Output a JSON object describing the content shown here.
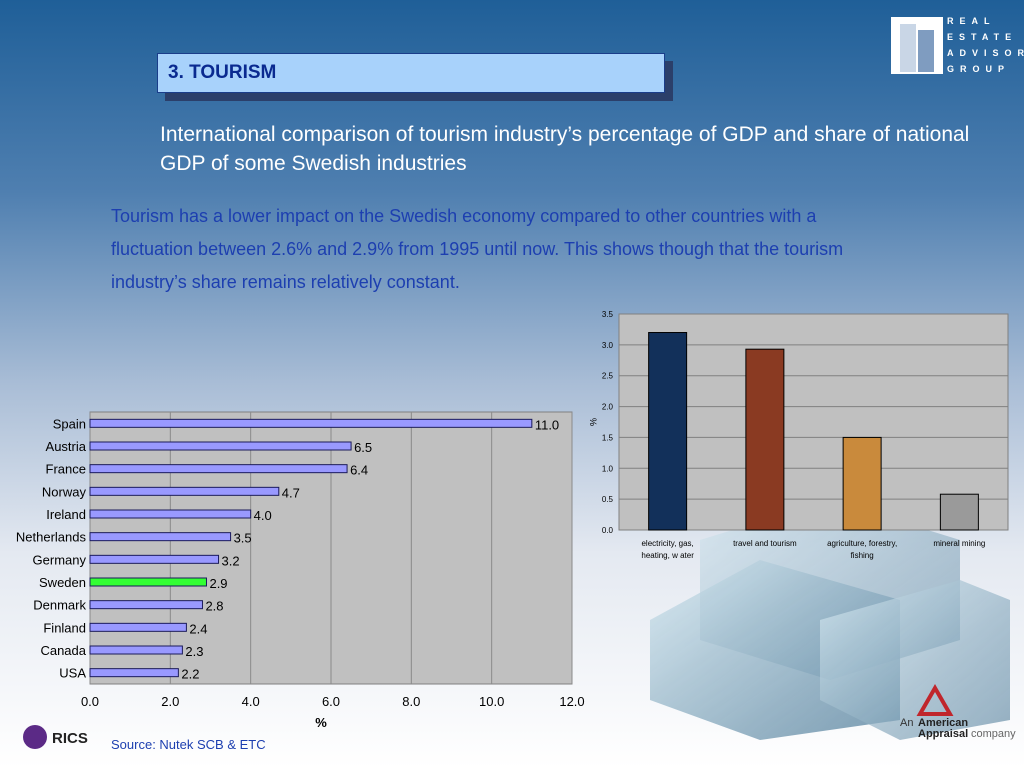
{
  "slide": {
    "heading": "3. TOURISM",
    "subtitle": "International comparison of tourism industry’s percentage of GDP and share of national GDP of some Swedish industries",
    "body": "Tourism has a lower impact on the Swedish economy compared to other countries with a fluctuation between 2.6% and 2.9% from 1995 until now. This shows though that the tourism industry’s share remains relatively constant.",
    "source": "Source: Nutek SCB & ETC",
    "logo_left": "RICS",
    "logo_right": [
      "REAL",
      "ESTATE",
      "ADVISORY",
      "GROUP"
    ],
    "footer_logo": [
      "An",
      "American",
      "Appraisal",
      "company"
    ]
  },
  "chart_data": [
    {
      "type": "barh",
      "categories": [
        "Spain",
        "Austria",
        "France",
        "Norway",
        "Ireland",
        "Netherlands",
        "Germany",
        "Sweden",
        "Denmark",
        "Finland",
        "Canada",
        "USA"
      ],
      "values": [
        11.0,
        6.5,
        6.4,
        4.7,
        4.0,
        3.5,
        3.2,
        2.9,
        2.8,
        2.4,
        2.3,
        2.2
      ],
      "value_labels": [
        "11.0",
        "6.5",
        "6.4",
        "4.7",
        "4.0",
        "3.5",
        "3.2",
        "2.9",
        "2.8",
        "2.4",
        "2.3",
        "2.2"
      ],
      "colors": [
        "#9999ff",
        "#9999ff",
        "#9999ff",
        "#9999ff",
        "#9999ff",
        "#9999ff",
        "#9999ff",
        "#33ff33",
        "#9999ff",
        "#9999ff",
        "#9999ff",
        "#9999ff"
      ],
      "xlabel": "%",
      "xlim": [
        0,
        12
      ],
      "xticks": [
        {
          "value": 0,
          "label": "0.0"
        },
        {
          "value": 2,
          "label": "2.0"
        },
        {
          "value": 4,
          "label": "4.0"
        },
        {
          "value": 6,
          "label": "6.0"
        },
        {
          "value": 8,
          "label": "8.0"
        },
        {
          "value": 10,
          "label": "10.0"
        },
        {
          "value": 12,
          "label": "12.0"
        }
      ],
      "grid": true
    },
    {
      "type": "bar",
      "categories": [
        "electricity, gas, heating, w ater",
        "travel and tourism",
        "agriculture, forestry, fishing",
        "mineral mining"
      ],
      "values": [
        3.2,
        2.93,
        1.5,
        0.58
      ],
      "colors": [
        "#12305a",
        "#8a3a22",
        "#c98a3c",
        "#9a9a9a"
      ],
      "ylabel": "%",
      "ylim": [
        0,
        3.5
      ],
      "yticks": [
        {
          "value": 0,
          "label": "0.0"
        },
        {
          "value": 0.5,
          "label": "0.5"
        },
        {
          "value": 1,
          "label": "1.0"
        },
        {
          "value": 1.5,
          "label": "1.5"
        },
        {
          "value": 2,
          "label": "2.0"
        },
        {
          "value": 2.5,
          "label": "2.5"
        },
        {
          "value": 3,
          "label": "3.0"
        },
        {
          "value": 3.5,
          "label": "3.5"
        }
      ],
      "grid": true
    }
  ]
}
